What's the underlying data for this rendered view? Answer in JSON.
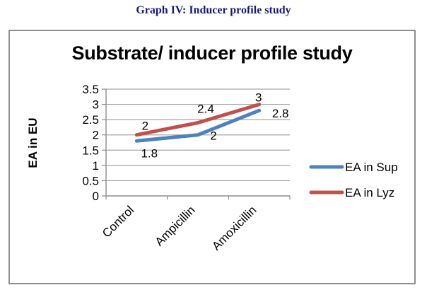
{
  "page": {
    "caption": "Graph IV: Inducer profile study"
  },
  "chart_data": {
    "type": "line",
    "title": "Substrate/ inducer profile study",
    "xlabel": "",
    "ylabel": "EA in EU",
    "categories": [
      "Control",
      "Ampicillin",
      "Amoxicillin"
    ],
    "series": [
      {
        "name": "EA in Sup",
        "color": "#4F81BD",
        "values": [
          1.8,
          2,
          2.8
        ]
      },
      {
        "name": "EA in Lyz",
        "color": "#C0504D",
        "values": [
          2,
          2.4,
          3
        ]
      }
    ],
    "ylim": [
      0,
      3.5
    ],
    "y_ticks": [
      "0",
      "0.5",
      "1",
      "1.5",
      "2",
      "2.5",
      "3",
      "3.5"
    ],
    "grid": true,
    "data_labels": true,
    "legend_position": "right"
  },
  "colors": {
    "caption_text": "#191970",
    "gridline": "#a6a6a6",
    "axis": "#8c8c8c",
    "chart_border": "#8f8f8f",
    "label_text": "#000000"
  }
}
